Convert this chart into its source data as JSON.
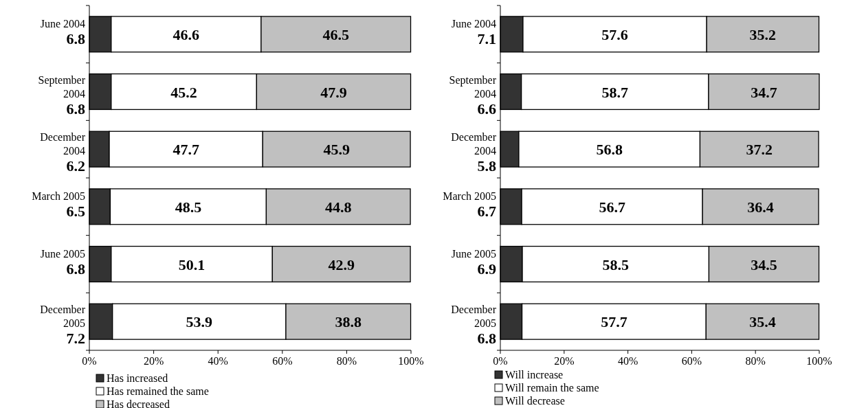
{
  "chart_data": [
    {
      "type": "bar",
      "orientation": "horizontal",
      "stacked": true,
      "data_labels": true,
      "categories": [
        "June 2004",
        "September 2004",
        "December 2004",
        "March 2005",
        "June 2005",
        "December 2005"
      ],
      "series": [
        {
          "name": "Has increased",
          "color": "#333333",
          "values": [
            6.8,
            6.8,
            6.2,
            6.5,
            6.8,
            7.2
          ]
        },
        {
          "name": "Has remained the same",
          "color": "#ffffff",
          "values": [
            46.6,
            45.2,
            47.7,
            48.5,
            50.1,
            53.9
          ]
        },
        {
          "name": "Has decreased",
          "color": "#c0c0c0",
          "values": [
            46.5,
            47.9,
            45.9,
            44.8,
            42.9,
            38.8
          ]
        }
      ],
      "xlim": [
        0,
        100
      ],
      "xticks": [
        {
          "value": 0,
          "label": "0%"
        },
        {
          "value": 20,
          "label": "20%"
        },
        {
          "value": 40,
          "label": "40%"
        },
        {
          "value": 60,
          "label": "60%"
        },
        {
          "value": 80,
          "label": "80%"
        },
        {
          "value": 100,
          "label": "100%"
        }
      ],
      "grid": false,
      "legend": "bottom"
    },
    {
      "type": "bar",
      "orientation": "horizontal",
      "stacked": true,
      "data_labels": true,
      "categories": [
        "June 2004",
        "September 2004",
        "December 2004",
        "March 2005",
        "June 2005",
        "December 2005"
      ],
      "series": [
        {
          "name": "Will increase",
          "color": "#333333",
          "values": [
            7.1,
            6.6,
            5.8,
            6.7,
            6.9,
            6.8
          ]
        },
        {
          "name": "Will remain the same",
          "color": "#ffffff",
          "values": [
            57.6,
            58.7,
            56.8,
            56.7,
            58.5,
            57.7
          ]
        },
        {
          "name": "Will decrease",
          "color": "#c0c0c0",
          "values": [
            35.2,
            34.7,
            37.2,
            36.4,
            34.5,
            35.4
          ]
        }
      ],
      "xlim": [
        0,
        100
      ],
      "xticks": [
        {
          "value": 0,
          "label": "0%"
        },
        {
          "value": 20,
          "label": "20%"
        },
        {
          "value": 40,
          "label": "40%"
        },
        {
          "value": 60,
          "label": "60%"
        },
        {
          "value": 80,
          "label": "80%"
        },
        {
          "value": 100,
          "label": "100%"
        }
      ],
      "grid": false,
      "legend": "bottom"
    }
  ]
}
